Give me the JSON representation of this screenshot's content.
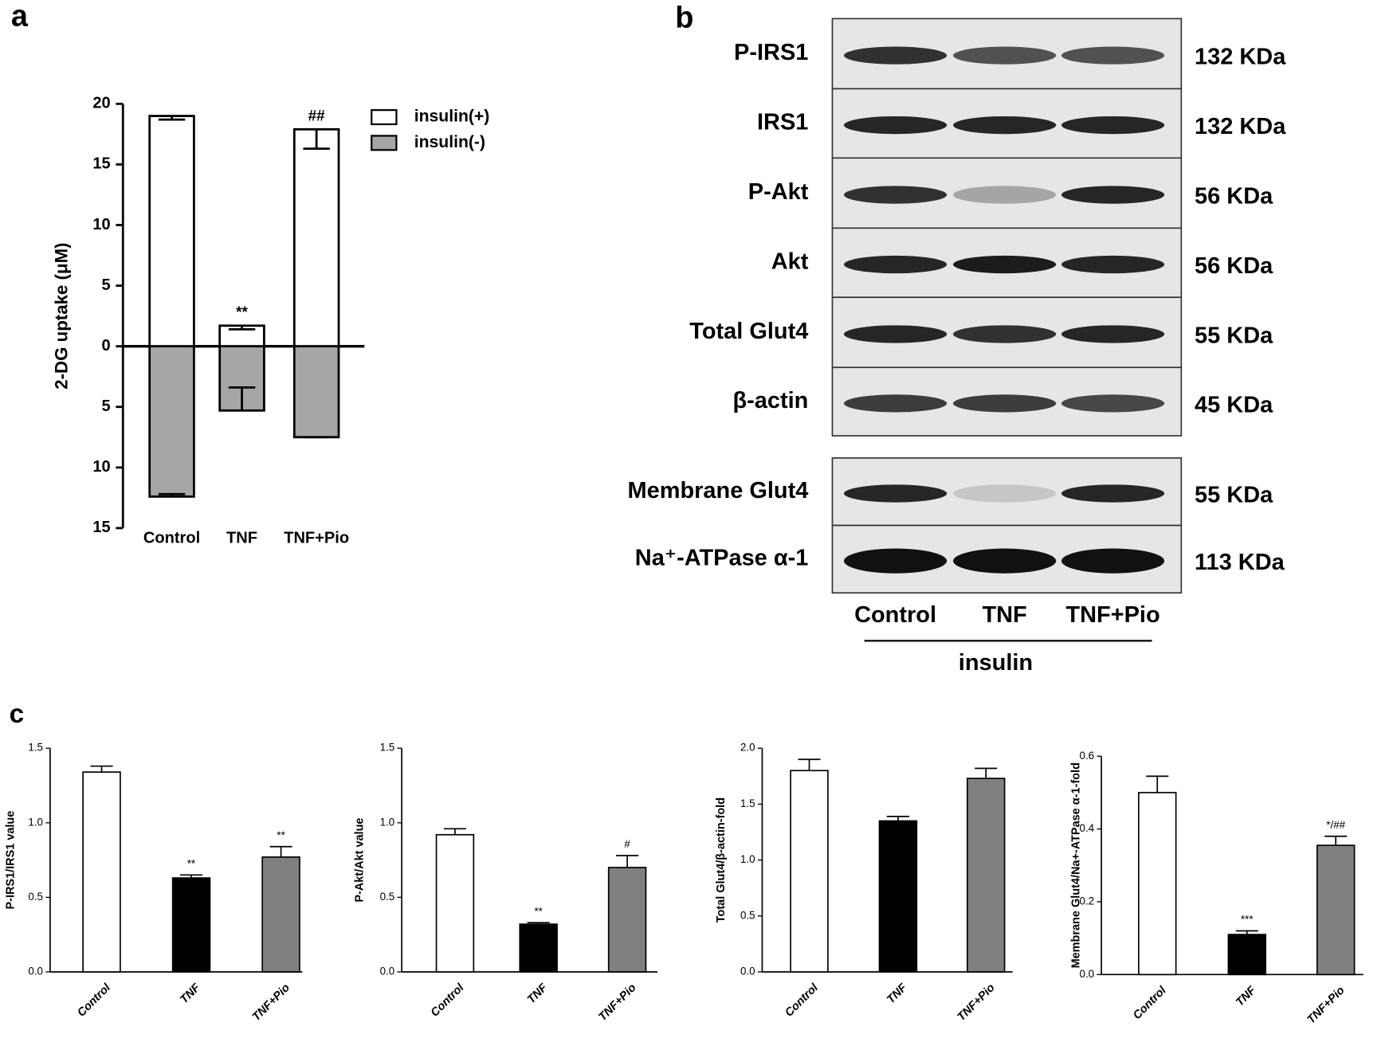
{
  "chart_data": [
    {
      "type": "bar",
      "panel_label": "a",
      "y_label": "2-DG uptake (μM)",
      "categories": [
        "Control",
        "TNF",
        "TNF+Pio"
      ],
      "series": [
        {
          "name": "insulin(+)",
          "color": "#ffffff",
          "values": [
            19,
            1.7,
            17.9
          ],
          "errors": [
            0.3,
            0.3,
            1.6
          ]
        },
        {
          "name": "insulin(-)",
          "color": "#a6a6a6",
          "values": [
            -12.4,
            -5.3,
            -7.5
          ],
          "errors": [
            0.2,
            1.9,
            0
          ]
        }
      ],
      "annotations": [
        null,
        "**",
        "##"
      ],
      "ylim": [
        -15,
        20
      ],
      "yticks": [
        {
          "value": -15,
          "label": "15"
        },
        {
          "value": -10,
          "label": "10"
        },
        {
          "value": -5,
          "label": "5"
        },
        0,
        5,
        10,
        15,
        20
      ]
    },
    {
      "type": "bar",
      "panel_label": "c",
      "y_label": "P-IRS1/IRS1 value",
      "categories": [
        "Control",
        "TNF",
        "TNF+Pio"
      ],
      "values": [
        1.34,
        0.63,
        0.77
      ],
      "errors": [
        0.04,
        0.02,
        0.07
      ],
      "colors": [
        "#ffffff",
        "#000000",
        "#808080"
      ],
      "annotations": [
        null,
        "**",
        "**"
      ],
      "ylim": [
        0,
        1.5
      ],
      "yticks": [
        {
          "value": 0,
          "label": "0.0"
        },
        0.5,
        {
          "value": 1,
          "label": "1.0"
        },
        1.5
      ]
    },
    {
      "type": "bar",
      "y_label": "P-Akt/Akt value",
      "categories": [
        "Control",
        "TNF",
        "TNF+Pio"
      ],
      "values": [
        0.92,
        0.32,
        0.7
      ],
      "errors": [
        0.04,
        0.01,
        0.08
      ],
      "colors": [
        "#ffffff",
        "#000000",
        "#808080"
      ],
      "annotations": [
        null,
        "**",
        "#"
      ],
      "ylim": [
        0,
        1.5
      ],
      "yticks": [
        {
          "value": 0,
          "label": "0.0"
        },
        0.5,
        {
          "value": 1,
          "label": "1.0"
        },
        1.5
      ]
    },
    {
      "type": "bar",
      "y_label": "Total Glut4/β-actin-fold",
      "categories": [
        "Control",
        "TNF",
        "TNF+Pio"
      ],
      "values": [
        1.8,
        1.35,
        1.73
      ],
      "errors": [
        0.1,
        0.04,
        0.09
      ],
      "colors": [
        "#ffffff",
        "#000000",
        "#808080"
      ],
      "ylim": [
        0,
        2
      ],
      "yticks": [
        {
          "value": 0,
          "label": "0.0"
        },
        0.5,
        {
          "value": 1,
          "label": "1.0"
        },
        1.5,
        {
          "value": 2,
          "label": "2.0"
        }
      ]
    },
    {
      "type": "bar",
      "y_label": "Membrane Glut4/Na+-ATPase α-1-fold",
      "categories": [
        "Control",
        "TNF",
        "TNF+Pio"
      ],
      "values": [
        0.5,
        0.11,
        0.355
      ],
      "errors": [
        0.045,
        0.01,
        0.025
      ],
      "colors": [
        "#ffffff",
        "#000000",
        "#808080"
      ],
      "annotations": [
        null,
        "***",
        "*/##"
      ],
      "ylim": [
        0,
        0.6
      ],
      "yticks": [
        {
          "value": 0,
          "label": "0.0"
        },
        0.2,
        0.4,
        0.6
      ]
    }
  ],
  "blot": {
    "panel_label": "b",
    "rows": [
      {
        "label": "P-IRS1",
        "size": "132 KDa"
      },
      {
        "label": "IRS1",
        "size": "132 KDa"
      },
      {
        "label": "P-Akt",
        "size": "56 KDa"
      },
      {
        "label": "Akt",
        "size": "56 KDa"
      },
      {
        "label": "Total Glut4",
        "size": "55 KDa"
      },
      {
        "label": "β-actin",
        "size": "45 KDa"
      },
      {
        "label": "Membrane Glut4",
        "size": "55 KDa"
      },
      {
        "label": "Na⁺-ATPase α-1",
        "size": "113 KDa"
      }
    ],
    "lanes": [
      "Control",
      "TNF",
      "TNF+Pio"
    ],
    "treatment": "insulin"
  }
}
